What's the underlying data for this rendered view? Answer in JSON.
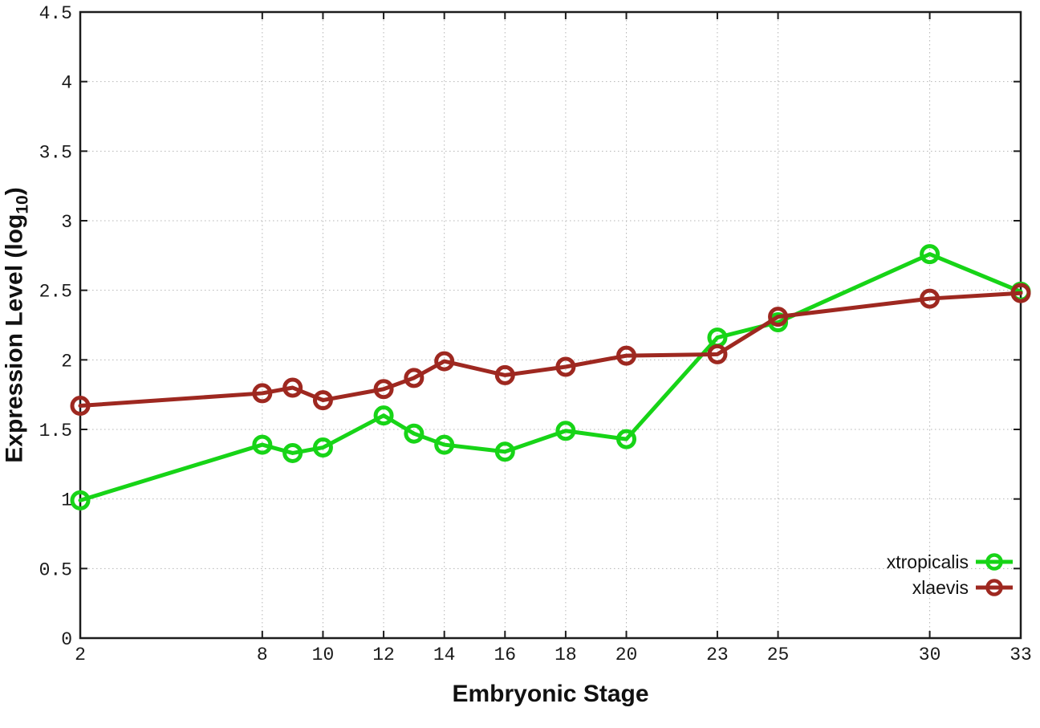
{
  "chart_data": {
    "type": "line",
    "title": "",
    "xlabel": "Embryonic Stage",
    "ylabel": {
      "pre": "Expression Level (log",
      "sub": "10",
      "post": ")"
    },
    "xlim": [
      2,
      33
    ],
    "ylim": [
      0,
      4.5
    ],
    "grid": "dotted",
    "legend_position": "inside-bottom-right",
    "x_tick_values": [
      2,
      8,
      10,
      12,
      14,
      16,
      18,
      20,
      23,
      25,
      30,
      33
    ],
    "x_tick_labels": [
      "2",
      "8",
      "10",
      "12",
      "14",
      "16",
      "18",
      "20",
      "23",
      "25",
      "30",
      "33"
    ],
    "y_tick_values": [
      0,
      0.5,
      1,
      1.5,
      2,
      2.5,
      3,
      3.5,
      4,
      4.5
    ],
    "y_tick_labels": [
      "0",
      "0.5",
      "1",
      "1.5",
      "2",
      "2.5",
      "3",
      "3.5",
      "4",
      "4.5"
    ],
    "x": [
      2,
      8,
      9,
      10,
      12,
      13,
      14,
      16,
      18,
      20,
      23,
      25,
      30,
      33
    ],
    "series": [
      {
        "name": "xtropicalis",
        "color": "#17d417",
        "marker": "open-circle",
        "values": [
          0.99,
          1.39,
          1.33,
          1.37,
          1.6,
          1.47,
          1.39,
          1.34,
          1.49,
          1.43,
          2.16,
          2.27,
          2.76,
          2.49
        ]
      },
      {
        "name": "xlaevis",
        "color": "#9e2820",
        "marker": "open-circle",
        "values": [
          1.67,
          1.76,
          1.8,
          1.71,
          1.79,
          1.87,
          1.99,
          1.89,
          1.95,
          2.03,
          2.04,
          2.31,
          2.44,
          2.48
        ]
      }
    ]
  },
  "styles": {
    "background": "#ffffff",
    "axis_color": "#1c1c1c",
    "grid_color": "#b5b5b5",
    "tick_text_color": "#1a1a1a"
  }
}
